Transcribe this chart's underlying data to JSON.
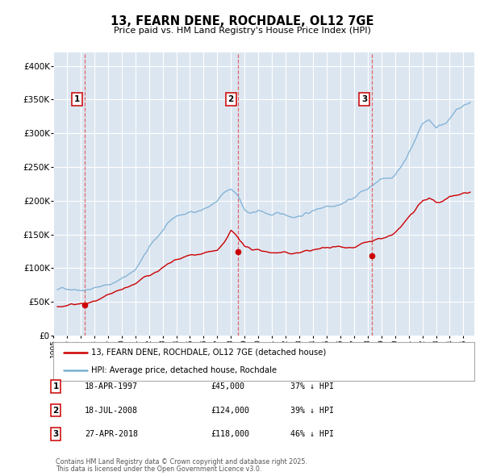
{
  "title": "13, FEARN DENE, ROCHDALE, OL12 7GE",
  "subtitle": "Price paid vs. HM Land Registry's House Price Index (HPI)",
  "legend_line1": "13, FEARN DENE, ROCHDALE, OL12 7GE (detached house)",
  "legend_line2": "HPI: Average price, detached house, Rochdale",
  "footer_line1": "Contains HM Land Registry data © Crown copyright and database right 2025.",
  "footer_line2": "This data is licensed under the Open Government Licence v3.0.",
  "transactions": [
    {
      "num": 1,
      "date": "18-APR-1997",
      "price": 45000,
      "pct": "37%",
      "direction": "↓",
      "x_year": 1997.29
    },
    {
      "num": 2,
      "date": "18-JUL-2008",
      "price": 124000,
      "pct": "39%",
      "direction": "↓",
      "x_year": 2008.54
    },
    {
      "num": 3,
      "date": "27-APR-2018",
      "price": 118000,
      "pct": "46%",
      "direction": "↓",
      "x_year": 2018.32
    }
  ],
  "red_color": "#cc0000",
  "blue_color": "#7bafd4",
  "dashed_color": "#e05050",
  "plot_bg": "#dce6f1",
  "grid_color": "#ffffff",
  "box_color": "#cc0000",
  "ylim": [
    0,
    420000
  ],
  "xlim": [
    1995.0,
    2025.8
  ],
  "yticks": [
    0,
    50000,
    100000,
    150000,
    200000,
    250000,
    300000,
    350000,
    400000
  ],
  "hpi_keypoints": [
    [
      1995.3,
      68000
    ],
    [
      1996,
      70000
    ],
    [
      1997,
      73000
    ],
    [
      1998,
      76000
    ],
    [
      1999,
      82000
    ],
    [
      2000,
      90000
    ],
    [
      2001,
      105000
    ],
    [
      2002,
      135000
    ],
    [
      2003,
      160000
    ],
    [
      2004,
      178000
    ],
    [
      2005,
      183000
    ],
    [
      2006,
      190000
    ],
    [
      2007.0,
      200000
    ],
    [
      2007.5,
      210000
    ],
    [
      2008.0,
      214000
    ],
    [
      2008.5,
      208000
    ],
    [
      2009.0,
      185000
    ],
    [
      2009.5,
      177000
    ],
    [
      2010.0,
      182000
    ],
    [
      2010.5,
      178000
    ],
    [
      2011.0,
      175000
    ],
    [
      2011.5,
      174000
    ],
    [
      2012.0,
      173000
    ],
    [
      2012.5,
      172000
    ],
    [
      2013.0,
      175000
    ],
    [
      2014.0,
      182000
    ],
    [
      2015.0,
      192000
    ],
    [
      2016.0,
      200000
    ],
    [
      2017.0,
      210000
    ],
    [
      2017.5,
      218000
    ],
    [
      2018.0,
      222000
    ],
    [
      2018.5,
      228000
    ],
    [
      2019.0,
      232000
    ],
    [
      2019.5,
      235000
    ],
    [
      2020.0,
      240000
    ],
    [
      2020.5,
      255000
    ],
    [
      2021.0,
      275000
    ],
    [
      2021.5,
      295000
    ],
    [
      2022.0,
      320000
    ],
    [
      2022.5,
      325000
    ],
    [
      2023.0,
      315000
    ],
    [
      2023.5,
      320000
    ],
    [
      2024.0,
      330000
    ],
    [
      2024.5,
      340000
    ],
    [
      2025.0,
      345000
    ],
    [
      2025.5,
      350000
    ]
  ],
  "pp_keypoints": [
    [
      1995.3,
      43000
    ],
    [
      1996.0,
      44000
    ],
    [
      1997.0,
      46000
    ],
    [
      1997.29,
      45000
    ],
    [
      1998.0,
      48000
    ],
    [
      1999.0,
      52000
    ],
    [
      2000.0,
      57000
    ],
    [
      2001.0,
      67000
    ],
    [
      2002.0,
      78000
    ],
    [
      2003.0,
      90000
    ],
    [
      2004.0,
      98000
    ],
    [
      2005.0,
      103000
    ],
    [
      2006.0,
      107000
    ],
    [
      2007.0,
      110000
    ],
    [
      2007.5,
      118000
    ],
    [
      2008.0,
      135000
    ],
    [
      2008.54,
      124000
    ],
    [
      2009.0,
      112000
    ],
    [
      2009.5,
      105000
    ],
    [
      2010.0,
      107000
    ],
    [
      2010.5,
      104000
    ],
    [
      2011.0,
      103000
    ],
    [
      2011.5,
      102000
    ],
    [
      2012.0,
      101000
    ],
    [
      2012.5,
      100000
    ],
    [
      2013.0,
      102000
    ],
    [
      2014.0,
      105000
    ],
    [
      2015.0,
      108000
    ],
    [
      2016.0,
      110000
    ],
    [
      2017.0,
      112000
    ],
    [
      2018.0,
      118000
    ],
    [
      2018.32,
      118000
    ],
    [
      2019.0,
      120000
    ],
    [
      2019.5,
      122000
    ],
    [
      2020.0,
      125000
    ],
    [
      2020.5,
      135000
    ],
    [
      2021.0,
      148000
    ],
    [
      2021.5,
      158000
    ],
    [
      2022.0,
      168000
    ],
    [
      2022.5,
      172000
    ],
    [
      2023.0,
      165000
    ],
    [
      2023.5,
      168000
    ],
    [
      2024.0,
      175000
    ],
    [
      2024.5,
      178000
    ],
    [
      2025.0,
      182000
    ],
    [
      2025.5,
      185000
    ]
  ]
}
